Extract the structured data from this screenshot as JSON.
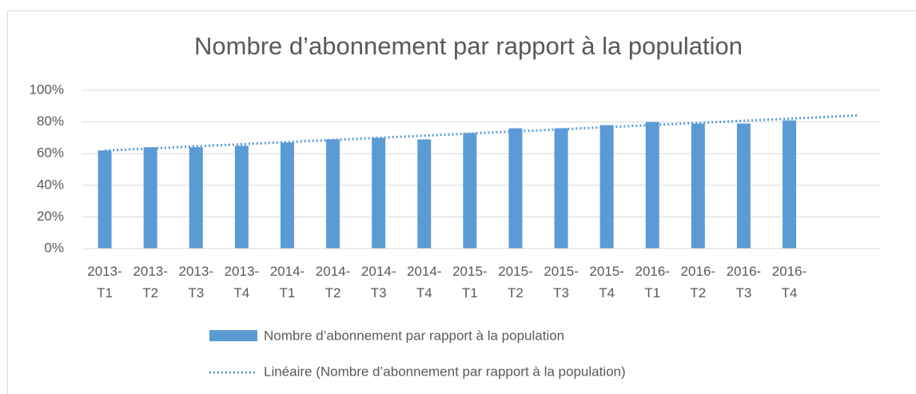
{
  "chart_data": {
    "type": "bar",
    "title": "Nombre d’abonnement par rapport à la population",
    "categories": [
      "2013-T1",
      "2013-T2",
      "2013-T3",
      "2013-T4",
      "2014-T1",
      "2014-T2",
      "2014-T3",
      "2014-T4",
      "2015-T1",
      "2015-T2",
      "2015-T3",
      "2015-T4",
      "2016-T1",
      "2016-T2",
      "2016-T3",
      "2016-T4"
    ],
    "series": [
      {
        "name": "Nombre d’abonnement par rapport à la population",
        "color": "#5b9bd5",
        "values": [
          62,
          64,
          64,
          65,
          67,
          69,
          70,
          69,
          73,
          76,
          76,
          78,
          80,
          79,
          79,
          81
        ]
      }
    ],
    "trendline": {
      "name": "Linéaire (Nombre d’abonnement par rapport à la population)",
      "type": "linear",
      "forward": 1.5,
      "color": "#5b9bd5"
    },
    "ylim": [
      0,
      100
    ],
    "yticks": [
      {
        "value": 0,
        "label": "0%"
      },
      {
        "value": 20,
        "label": "20%"
      },
      {
        "value": 40,
        "label": "40%"
      },
      {
        "value": 60,
        "label": "60%"
      },
      {
        "value": 80,
        "label": "80%"
      },
      {
        "value": 100,
        "label": "100%"
      }
    ],
    "grid": true,
    "legend": "bottom"
  }
}
